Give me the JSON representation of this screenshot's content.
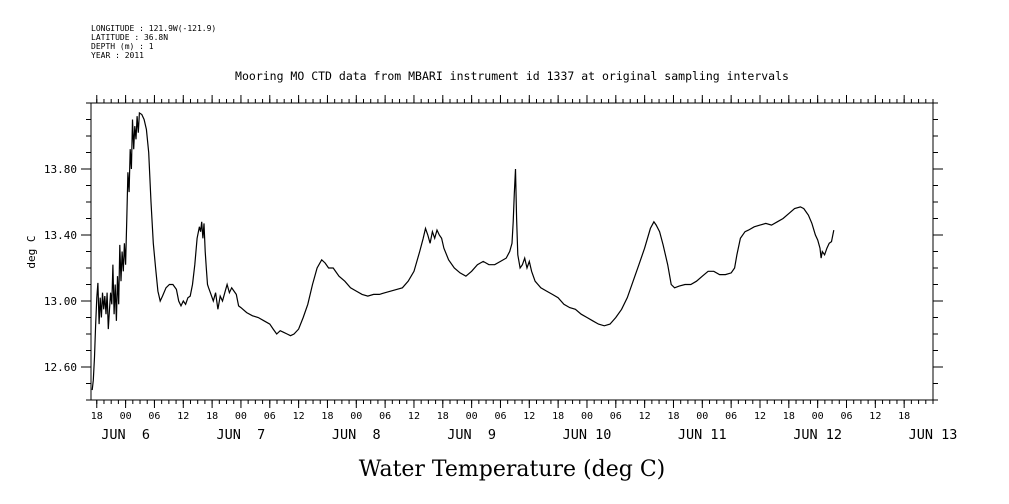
{
  "meta": {
    "longitude": "LONGITUDE : 121.9W(-121.9)",
    "latitude": "LATITUDE : 36.8N",
    "depth": "DEPTH (m) : 1",
    "year": "YEAR : 2011"
  },
  "chart_data": {
    "type": "line",
    "title": "Mooring MO CTD data from MBARI instrument id 1337 at original sampling intervals",
    "xlabel": "Water Temperature (deg C)",
    "ylabel": "deg C",
    "ylim": [
      12.4,
      14.2
    ],
    "yticks": [
      12.6,
      13.0,
      13.4,
      13.8
    ],
    "ytick_labels": [
      "12.60",
      "13.00",
      "13.40",
      "13.80"
    ],
    "xlim": [
      -0.3,
      7.0
    ],
    "x_unit": "days since JUN 6 00:00 (2011)",
    "hour_ticks": [
      {
        "x": -0.25,
        "label": "18"
      },
      {
        "x": 0.0,
        "label": "00"
      },
      {
        "x": 0.25,
        "label": "06"
      },
      {
        "x": 0.5,
        "label": "12"
      },
      {
        "x": 0.75,
        "label": "18"
      },
      {
        "x": 1.0,
        "label": "00"
      },
      {
        "x": 1.25,
        "label": "06"
      },
      {
        "x": 1.5,
        "label": "12"
      },
      {
        "x": 1.75,
        "label": "18"
      },
      {
        "x": 2.0,
        "label": "00"
      },
      {
        "x": 2.25,
        "label": "06"
      },
      {
        "x": 2.5,
        "label": "12"
      },
      {
        "x": 2.75,
        "label": "18"
      },
      {
        "x": 3.0,
        "label": "00"
      },
      {
        "x": 3.25,
        "label": "06"
      },
      {
        "x": 3.5,
        "label": "12"
      },
      {
        "x": 3.75,
        "label": "18"
      },
      {
        "x": 4.0,
        "label": "00"
      },
      {
        "x": 4.25,
        "label": "06"
      },
      {
        "x": 4.5,
        "label": "12"
      },
      {
        "x": 4.75,
        "label": "18"
      },
      {
        "x": 5.0,
        "label": "00"
      },
      {
        "x": 5.25,
        "label": "06"
      },
      {
        "x": 5.5,
        "label": "12"
      },
      {
        "x": 5.75,
        "label": "18"
      },
      {
        "x": 6.0,
        "label": "00"
      },
      {
        "x": 6.25,
        "label": "06"
      },
      {
        "x": 6.5,
        "label": "12"
      },
      {
        "x": 6.75,
        "label": "18"
      }
    ],
    "day_labels": [
      {
        "x": 0.0,
        "label": "JUN  6"
      },
      {
        "x": 1.0,
        "label": "JUN  7"
      },
      {
        "x": 2.0,
        "label": "JUN  8"
      },
      {
        "x": 3.0,
        "label": "JUN  9"
      },
      {
        "x": 4.0,
        "label": "JUN 10"
      },
      {
        "x": 5.0,
        "label": "JUN 11"
      },
      {
        "x": 6.0,
        "label": "JUN 12"
      },
      {
        "x": 7.0,
        "label": "JUN 13"
      }
    ],
    "series": [
      {
        "points": [
          [
            -0.29,
            12.46
          ],
          [
            -0.28,
            12.52
          ],
          [
            -0.27,
            12.66
          ],
          [
            -0.26,
            12.85
          ],
          [
            -0.25,
            13.02
          ],
          [
            -0.24,
            13.11
          ],
          [
            -0.23,
            12.86
          ],
          [
            -0.22,
            13.02
          ],
          [
            -0.21,
            12.9
          ],
          [
            -0.2,
            13.05
          ],
          [
            -0.19,
            12.95
          ],
          [
            -0.18,
            13.03
          ],
          [
            -0.17,
            12.92
          ],
          [
            -0.16,
            13.05
          ],
          [
            -0.15,
            12.83
          ],
          [
            -0.14,
            12.95
          ],
          [
            -0.13,
            13.05
          ],
          [
            -0.12,
            12.98
          ],
          [
            -0.11,
            13.22
          ],
          [
            -0.1,
            12.92
          ],
          [
            -0.09,
            13.1
          ],
          [
            -0.08,
            12.88
          ],
          [
            -0.07,
            13.15
          ],
          [
            -0.06,
            12.98
          ],
          [
            -0.05,
            13.34
          ],
          [
            -0.04,
            13.12
          ],
          [
            -0.03,
            13.3
          ],
          [
            -0.02,
            13.18
          ],
          [
            -0.01,
            13.35
          ],
          [
            0.0,
            13.22
          ],
          [
            0.01,
            13.5
          ],
          [
            0.02,
            13.78
          ],
          [
            0.03,
            13.66
          ],
          [
            0.04,
            13.92
          ],
          [
            0.05,
            13.8
          ],
          [
            0.06,
            14.1
          ],
          [
            0.07,
            13.92
          ],
          [
            0.08,
            14.06
          ],
          [
            0.09,
            13.98
          ],
          [
            0.1,
            14.12
          ],
          [
            0.11,
            14.02
          ],
          [
            0.12,
            14.14
          ],
          [
            0.14,
            14.13
          ],
          [
            0.16,
            14.1
          ],
          [
            0.18,
            14.04
          ],
          [
            0.2,
            13.9
          ],
          [
            0.22,
            13.6
          ],
          [
            0.24,
            13.35
          ],
          [
            0.26,
            13.2
          ],
          [
            0.28,
            13.06
          ],
          [
            0.3,
            13.0
          ],
          [
            0.32,
            13.03
          ],
          [
            0.35,
            13.08
          ],
          [
            0.38,
            13.1
          ],
          [
            0.41,
            13.1
          ],
          [
            0.44,
            13.07
          ],
          [
            0.46,
            13.0
          ],
          [
            0.48,
            12.97
          ],
          [
            0.5,
            13.0
          ],
          [
            0.52,
            12.98
          ],
          [
            0.54,
            13.02
          ],
          [
            0.56,
            13.03
          ],
          [
            0.58,
            13.1
          ],
          [
            0.6,
            13.22
          ],
          [
            0.62,
            13.38
          ],
          [
            0.64,
            13.45
          ],
          [
            0.65,
            13.42
          ],
          [
            0.66,
            13.48
          ],
          [
            0.67,
            13.38
          ],
          [
            0.68,
            13.47
          ],
          [
            0.69,
            13.3
          ],
          [
            0.7,
            13.2
          ],
          [
            0.71,
            13.1
          ],
          [
            0.72,
            13.08
          ],
          [
            0.74,
            13.04
          ],
          [
            0.76,
            13.0
          ],
          [
            0.78,
            13.05
          ],
          [
            0.8,
            12.95
          ],
          [
            0.82,
            13.03
          ],
          [
            0.84,
            13.0
          ],
          [
            0.86,
            13.05
          ],
          [
            0.88,
            13.1
          ],
          [
            0.9,
            13.05
          ],
          [
            0.92,
            13.08
          ],
          [
            0.94,
            13.06
          ],
          [
            0.96,
            13.04
          ],
          [
            0.98,
            12.97
          ],
          [
            1.0,
            12.96
          ],
          [
            1.05,
            12.93
          ],
          [
            1.1,
            12.91
          ],
          [
            1.15,
            12.9
          ],
          [
            1.2,
            12.88
          ],
          [
            1.25,
            12.86
          ],
          [
            1.28,
            12.83
          ],
          [
            1.31,
            12.8
          ],
          [
            1.34,
            12.82
          ],
          [
            1.37,
            12.81
          ],
          [
            1.4,
            12.8
          ],
          [
            1.43,
            12.79
          ],
          [
            1.46,
            12.8
          ],
          [
            1.5,
            12.83
          ],
          [
            1.54,
            12.9
          ],
          [
            1.58,
            12.98
          ],
          [
            1.62,
            13.1
          ],
          [
            1.66,
            13.2
          ],
          [
            1.7,
            13.25
          ],
          [
            1.73,
            13.23
          ],
          [
            1.76,
            13.2
          ],
          [
            1.8,
            13.2
          ],
          [
            1.85,
            13.15
          ],
          [
            1.9,
            13.12
          ],
          [
            1.95,
            13.08
          ],
          [
            2.0,
            13.06
          ],
          [
            2.05,
            13.04
          ],
          [
            2.1,
            13.03
          ],
          [
            2.15,
            13.04
          ],
          [
            2.2,
            13.04
          ],
          [
            2.25,
            13.05
          ],
          [
            2.3,
            13.06
          ],
          [
            2.35,
            13.07
          ],
          [
            2.4,
            13.08
          ],
          [
            2.45,
            13.12
          ],
          [
            2.5,
            13.18
          ],
          [
            2.55,
            13.3
          ],
          [
            2.58,
            13.38
          ],
          [
            2.6,
            13.44
          ],
          [
            2.62,
            13.4
          ],
          [
            2.64,
            13.35
          ],
          [
            2.66,
            13.42
          ],
          [
            2.68,
            13.38
          ],
          [
            2.7,
            13.43
          ],
          [
            2.72,
            13.4
          ],
          [
            2.74,
            13.38
          ],
          [
            2.76,
            13.32
          ],
          [
            2.8,
            13.25
          ],
          [
            2.85,
            13.2
          ],
          [
            2.9,
            13.17
          ],
          [
            2.95,
            13.15
          ],
          [
            3.0,
            13.18
          ],
          [
            3.05,
            13.22
          ],
          [
            3.1,
            13.24
          ],
          [
            3.15,
            13.22
          ],
          [
            3.2,
            13.22
          ],
          [
            3.25,
            13.24
          ],
          [
            3.3,
            13.26
          ],
          [
            3.33,
            13.3
          ],
          [
            3.35,
            13.35
          ],
          [
            3.36,
            13.48
          ],
          [
            3.37,
            13.65
          ],
          [
            3.38,
            13.8
          ],
          [
            3.39,
            13.5
          ],
          [
            3.4,
            13.28
          ],
          [
            3.42,
            13.2
          ],
          [
            3.44,
            13.22
          ],
          [
            3.46,
            13.26
          ],
          [
            3.48,
            13.2
          ],
          [
            3.5,
            13.24
          ],
          [
            3.52,
            13.18
          ],
          [
            3.55,
            13.12
          ],
          [
            3.6,
            13.08
          ],
          [
            3.65,
            13.06
          ],
          [
            3.7,
            13.04
          ],
          [
            3.75,
            13.02
          ],
          [
            3.8,
            12.98
          ],
          [
            3.85,
            12.96
          ],
          [
            3.9,
            12.95
          ],
          [
            3.95,
            12.92
          ],
          [
            4.0,
            12.9
          ],
          [
            4.05,
            12.88
          ],
          [
            4.1,
            12.86
          ],
          [
            4.15,
            12.85
          ],
          [
            4.2,
            12.86
          ],
          [
            4.25,
            12.9
          ],
          [
            4.3,
            12.95
          ],
          [
            4.35,
            13.02
          ],
          [
            4.4,
            13.12
          ],
          [
            4.45,
            13.22
          ],
          [
            4.5,
            13.32
          ],
          [
            4.55,
            13.44
          ],
          [
            4.58,
            13.48
          ],
          [
            4.6,
            13.46
          ],
          [
            4.63,
            13.42
          ],
          [
            4.66,
            13.34
          ],
          [
            4.7,
            13.22
          ],
          [
            4.73,
            13.1
          ],
          [
            4.76,
            13.08
          ],
          [
            4.8,
            13.09
          ],
          [
            4.85,
            13.1
          ],
          [
            4.9,
            13.1
          ],
          [
            4.95,
            13.12
          ],
          [
            5.0,
            13.15
          ],
          [
            5.05,
            13.18
          ],
          [
            5.1,
            13.18
          ],
          [
            5.15,
            13.16
          ],
          [
            5.2,
            13.16
          ],
          [
            5.25,
            13.17
          ],
          [
            5.28,
            13.2
          ],
          [
            5.3,
            13.28
          ],
          [
            5.33,
            13.38
          ],
          [
            5.37,
            13.42
          ],
          [
            5.4,
            13.43
          ],
          [
            5.45,
            13.45
          ],
          [
            5.5,
            13.46
          ],
          [
            5.55,
            13.47
          ],
          [
            5.6,
            13.46
          ],
          [
            5.65,
            13.48
          ],
          [
            5.7,
            13.5
          ],
          [
            5.75,
            13.53
          ],
          [
            5.8,
            13.56
          ],
          [
            5.85,
            13.57
          ],
          [
            5.88,
            13.56
          ],
          [
            5.92,
            13.52
          ],
          [
            5.95,
            13.47
          ],
          [
            5.98,
            13.4
          ],
          [
            6.0,
            13.37
          ],
          [
            6.02,
            13.32
          ],
          [
            6.03,
            13.26
          ],
          [
            6.04,
            13.3
          ],
          [
            6.06,
            13.28
          ],
          [
            6.08,
            13.32
          ],
          [
            6.1,
            13.35
          ],
          [
            6.12,
            13.36
          ],
          [
            6.14,
            13.43
          ]
        ]
      }
    ]
  }
}
